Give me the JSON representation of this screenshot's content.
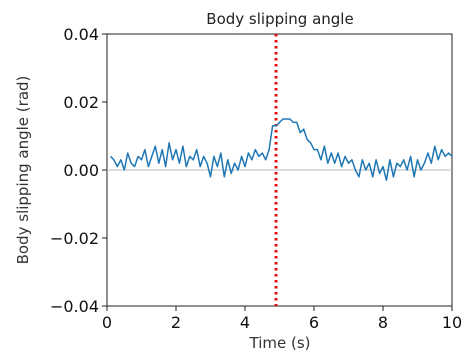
{
  "chart_data": {
    "type": "line",
    "title": "Body slipping angle",
    "xlabel": "Time (s)",
    "ylabel": "Body slipping angle (rad)",
    "xlim": [
      0,
      10
    ],
    "ylim": [
      -0.04,
      0.04
    ],
    "x_ticks": [
      0,
      2,
      4,
      6,
      8,
      10
    ],
    "x_tick_labels": [
      "0",
      "2",
      "4",
      "6",
      "8",
      "10"
    ],
    "y_ticks": [
      -0.04,
      -0.02,
      0.0,
      0.02,
      0.04
    ],
    "y_tick_labels": [
      "−0.04",
      "−0.02",
      "0.00",
      "0.02",
      "0.04"
    ],
    "grid": false,
    "reference_lines": [
      {
        "orientation": "horizontal",
        "value": 0.0,
        "color": "#bbbbbb",
        "style": "solid"
      },
      {
        "orientation": "vertical",
        "value": 4.9,
        "color": "#e01010",
        "style": "dotted"
      }
    ],
    "series": [
      {
        "color": "#1f77b4",
        "x": [
          0.1,
          0.2,
          0.3,
          0.4,
          0.5,
          0.6,
          0.7,
          0.8,
          0.9,
          1.0,
          1.1,
          1.2,
          1.3,
          1.4,
          1.5,
          1.6,
          1.7,
          1.8,
          1.9,
          2.0,
          2.1,
          2.2,
          2.3,
          2.4,
          2.5,
          2.6,
          2.7,
          2.8,
          2.9,
          3.0,
          3.1,
          3.2,
          3.3,
          3.4,
          3.5,
          3.6,
          3.7,
          3.8,
          3.9,
          4.0,
          4.1,
          4.2,
          4.3,
          4.4,
          4.5,
          4.6,
          4.7,
          4.8,
          4.9,
          5.0,
          5.1,
          5.2,
          5.3,
          5.4,
          5.5,
          5.6,
          5.7,
          5.8,
          5.9,
          6.0,
          6.1,
          6.2,
          6.3,
          6.4,
          6.5,
          6.6,
          6.7,
          6.8,
          6.9,
          7.0,
          7.1,
          7.2,
          7.3,
          7.4,
          7.5,
          7.6,
          7.7,
          7.8,
          7.9,
          8.0,
          8.1,
          8.2,
          8.3,
          8.4,
          8.5,
          8.6,
          8.7,
          8.8,
          8.9,
          9.0,
          9.1,
          9.2,
          9.3,
          9.4,
          9.5,
          9.6,
          9.7,
          9.8,
          9.9,
          10.0
        ],
        "values": [
          0.004,
          0.003,
          0.001,
          0.003,
          0.0,
          0.005,
          0.002,
          0.001,
          0.004,
          0.003,
          0.006,
          0.001,
          0.004,
          0.007,
          0.002,
          0.006,
          0.001,
          0.008,
          0.003,
          0.006,
          0.002,
          0.007,
          0.001,
          0.004,
          0.003,
          0.006,
          0.001,
          0.004,
          0.002,
          -0.002,
          0.004,
          0.001,
          0.005,
          -0.002,
          0.003,
          -0.001,
          0.002,
          0.0,
          0.004,
          0.001,
          0.005,
          0.003,
          0.006,
          0.004,
          0.005,
          0.003,
          0.006,
          0.013,
          0.013,
          0.014,
          0.015,
          0.015,
          0.015,
          0.014,
          0.014,
          0.011,
          0.012,
          0.009,
          0.008,
          0.006,
          0.006,
          0.003,
          0.007,
          0.002,
          0.005,
          0.002,
          0.005,
          0.001,
          0.004,
          0.002,
          0.003,
          0.0,
          -0.002,
          0.003,
          0.0,
          0.002,
          -0.002,
          0.003,
          -0.001,
          0.001,
          -0.003,
          0.003,
          -0.002,
          0.002,
          0.001,
          0.003,
          0.0,
          0.004,
          -0.002,
          0.003,
          0.0,
          0.002,
          0.005,
          0.002,
          0.007,
          0.003,
          0.006,
          0.004,
          0.005,
          0.004
        ]
      }
    ]
  }
}
